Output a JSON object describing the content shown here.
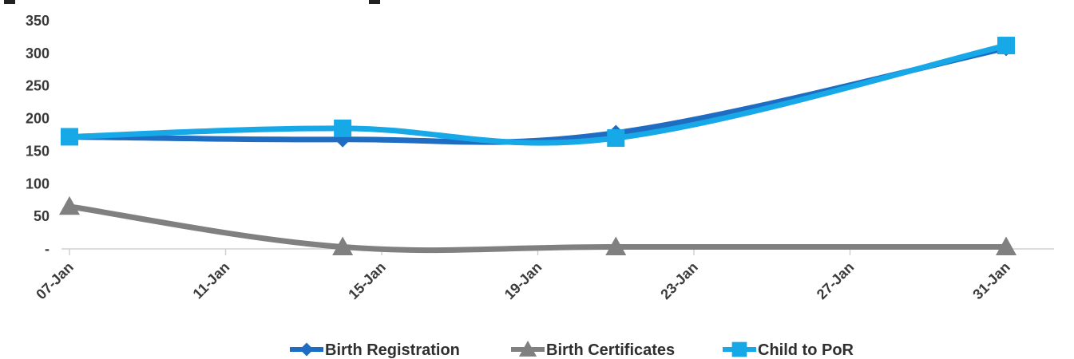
{
  "chart_data": {
    "type": "line",
    "title": "",
    "xlabel": "",
    "ylabel": "",
    "x_ticks": [
      "07-Jan",
      "11-Jan",
      "15-Jan",
      "19-Jan",
      "23-Jan",
      "27-Jan",
      "31-Jan"
    ],
    "x_range_days": [
      7,
      31
    ],
    "ylim": [
      0,
      350
    ],
    "y_ticks": [
      {
        "value": 0,
        "label": "-"
      },
      {
        "value": 50,
        "label": "50"
      },
      {
        "value": 100,
        "label": "100"
      },
      {
        "value": 150,
        "label": "150"
      },
      {
        "value": 200,
        "label": "200"
      },
      {
        "value": 250,
        "label": "250"
      },
      {
        "value": 300,
        "label": "300"
      },
      {
        "value": 350,
        "label": "350"
      }
    ],
    "grid": false,
    "legend_position": "bottom",
    "series": [
      {
        "name": "Birth Registration",
        "color": "#1F6DC2",
        "marker": "diamond",
        "x": [
          "07-Jan",
          "14-Jan",
          "21-Jan",
          "31-Jan"
        ],
        "values": [
          172,
          168,
          178,
          308
        ]
      },
      {
        "name": "Birth Certificates",
        "color": "#808080",
        "marker": "triangle",
        "x": [
          "07-Jan",
          "14-Jan",
          "21-Jan",
          "31-Jan"
        ],
        "values": [
          65,
          3,
          3,
          3
        ]
      },
      {
        "name": "Child to PoR",
        "color": "#17A8E8",
        "marker": "square",
        "x": [
          "07-Jan",
          "14-Jan",
          "21-Jan",
          "31-Jan"
        ],
        "values": [
          172,
          185,
          170,
          312
        ]
      }
    ]
  }
}
